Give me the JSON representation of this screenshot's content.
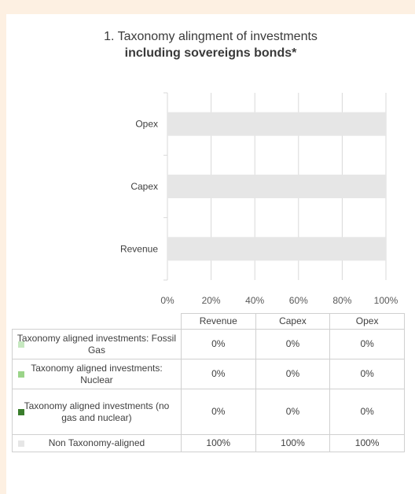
{
  "title": {
    "line1": "1. Taxonomy alingment of investments",
    "line2": "including sovereigns bonds*"
  },
  "colors": {
    "fossil_gas": "#c6e8c0",
    "nuclear": "#9bd489",
    "no_gas_nuclear": "#3a7d2c",
    "non_aligned": "#e6e6e6"
  },
  "chart_data": {
    "type": "bar",
    "orientation": "horizontal",
    "stacked": true,
    "categories": [
      "Opex",
      "Capex",
      "Revenue"
    ],
    "series": [
      {
        "name": "Taxonomy aligned investments: Fossil Gas",
        "values": [
          0,
          0,
          0
        ],
        "color": "#c6e8c0"
      },
      {
        "name": "Taxonomy aligned investments: Nuclear",
        "values": [
          0,
          0,
          0
        ],
        "color": "#9bd489"
      },
      {
        "name": "Taxonomy aligned investments (no gas and nuclear)",
        "values": [
          0,
          0,
          0
        ],
        "color": "#3a7d2c"
      },
      {
        "name": "Non Taxonomy-aligned",
        "values": [
          100,
          100,
          100
        ],
        "color": "#e6e6e6"
      }
    ],
    "xlim": [
      0,
      100
    ],
    "xticks": [
      "0%",
      "20%",
      "40%",
      "60%",
      "80%",
      "100%"
    ],
    "grid": true
  },
  "table": {
    "headers": [
      "Revenue",
      "Capex",
      "Opex"
    ],
    "rows": [
      {
        "label": "Taxonomy aligned investments: Fossil Gas",
        "color": "#c6e8c0",
        "values": [
          "0%",
          "0%",
          "0%"
        ]
      },
      {
        "label": "Taxonomy aligned investments: Nuclear",
        "color": "#9bd489",
        "values": [
          "0%",
          "0%",
          "0%"
        ]
      },
      {
        "label": "Taxonomy aligned investments (no gas and nuclear)",
        "color": "#3a7d2c",
        "values": [
          "0%",
          "0%",
          "0%"
        ]
      },
      {
        "label": "Non Taxonomy-aligned",
        "color": "#e6e6e6",
        "values": [
          "100%",
          "100%",
          "100%"
        ]
      }
    ]
  }
}
